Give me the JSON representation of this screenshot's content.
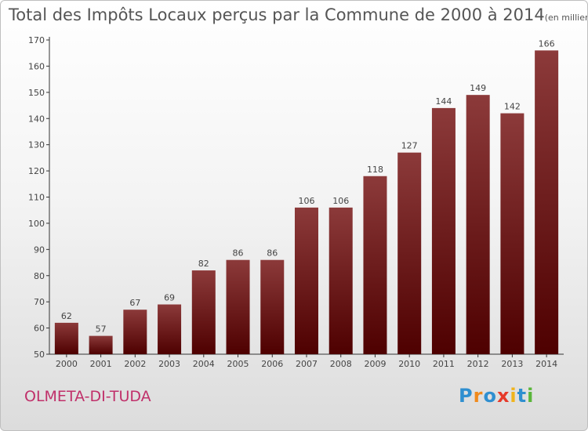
{
  "header": {
    "title": "Total des Impôts Locaux perçus par la Commune de 2000 à 2014",
    "unit": "(en milliers d'€)"
  },
  "commune": "OLMETA-DI-TUDA",
  "logo": {
    "letters": [
      "P",
      "r",
      "o",
      "x",
      "i",
      "t",
      "i"
    ],
    "colors": [
      "#2f8fd0",
      "#f08a1c",
      "#2f8fd0",
      "#e63a2a",
      "#f0b41c",
      "#2f8fd0",
      "#5ab63a"
    ]
  },
  "colors": {
    "bar_top": "#8c3a3a",
    "bar_bottom": "#4e0000",
    "axis": "#333333",
    "text": "#444444"
  },
  "chart_data": {
    "type": "bar",
    "title": "Total des Impôts Locaux perçus par la Commune de 2000 à 2014",
    "xlabel": "",
    "ylabel": "",
    "categories": [
      "2000",
      "2001",
      "2002",
      "2003",
      "2004",
      "2005",
      "2006",
      "2007",
      "2008",
      "2009",
      "2010",
      "2011",
      "2012",
      "2013",
      "2014"
    ],
    "values": [
      62,
      57,
      67,
      69,
      82,
      86,
      86,
      106,
      106,
      118,
      127,
      144,
      149,
      142,
      166
    ],
    "ylim": [
      50,
      170
    ],
    "yticks": [
      50,
      60,
      70,
      80,
      90,
      100,
      110,
      120,
      130,
      140,
      150,
      160,
      170
    ],
    "grid": false,
    "data_labels": true
  }
}
